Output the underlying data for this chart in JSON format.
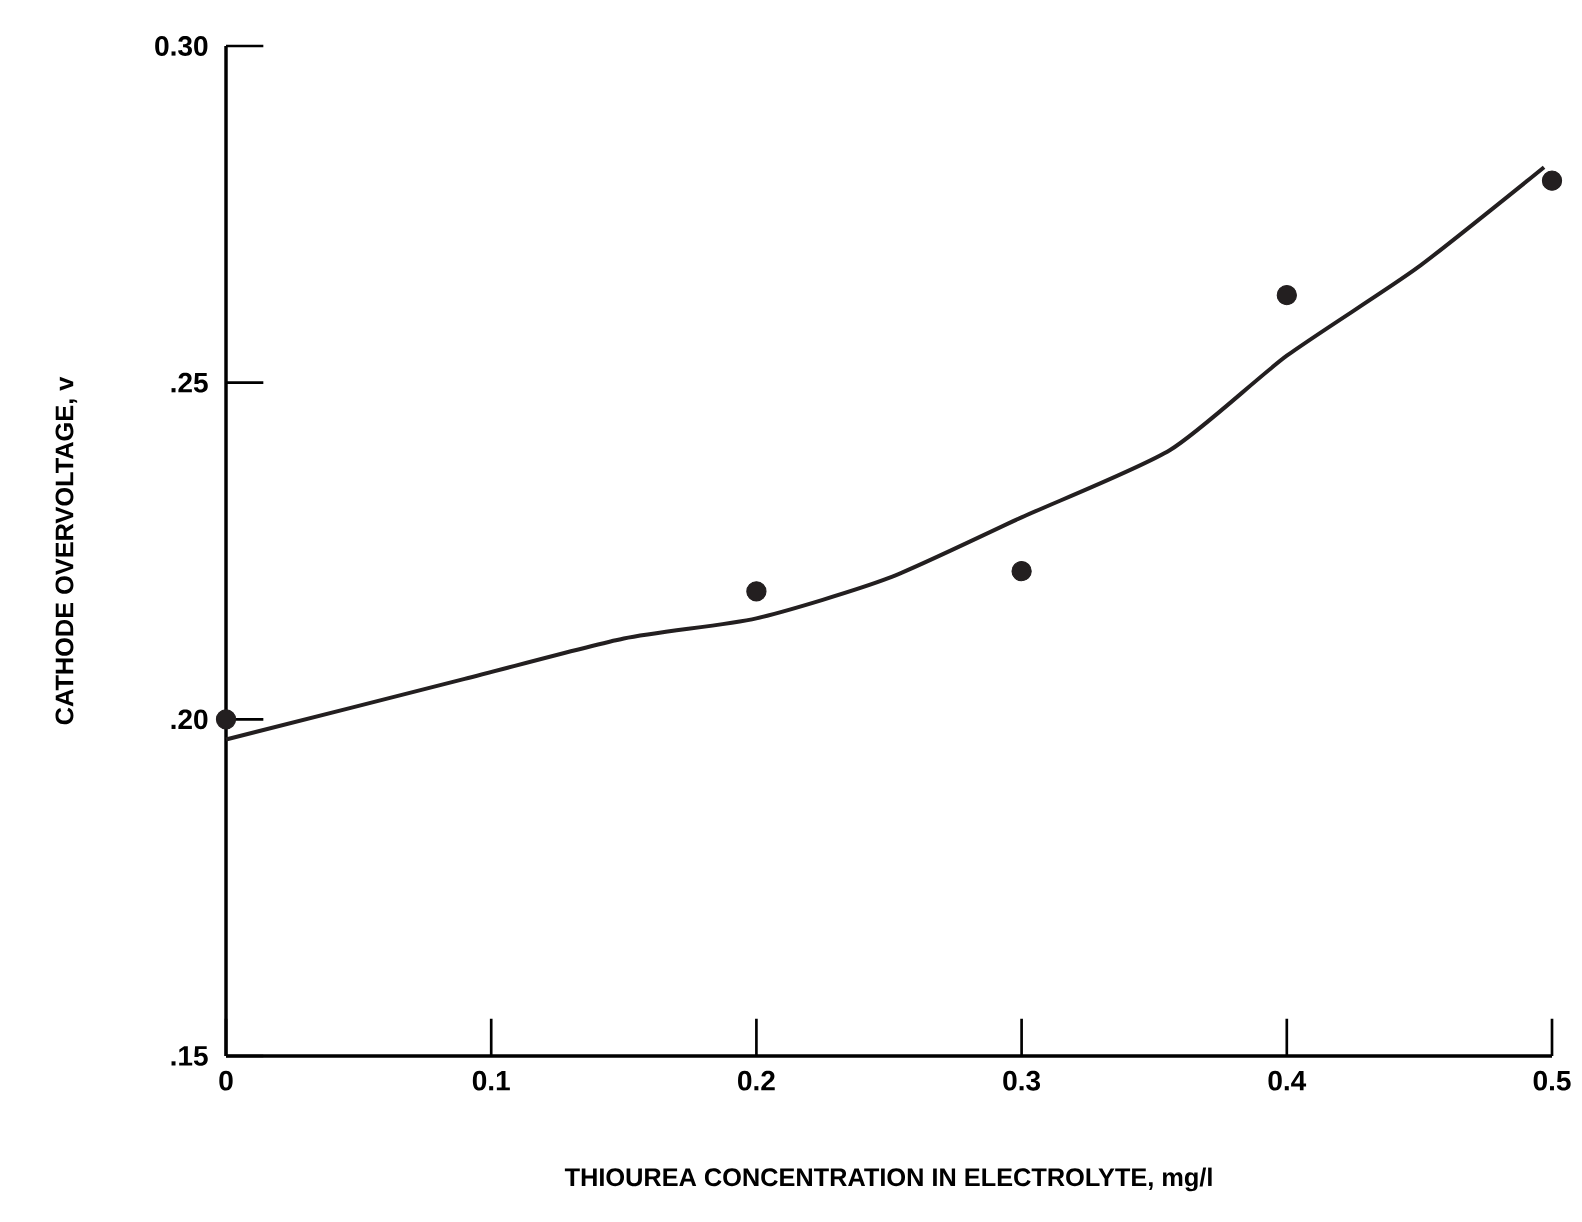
{
  "chart_data": {
    "type": "scatter",
    "xlabel": "THIOUREA CONCENTRATION IN ELECTROLYTE, mg/l",
    "ylabel": "CATHODE OVERVOLTAGE, v",
    "xlim": [
      0,
      0.5
    ],
    "ylim": [
      0.15,
      0.3
    ],
    "xticks": [
      0,
      0.1,
      0.2,
      0.3,
      0.4,
      0.5
    ],
    "yticks": [
      {
        "value": 0.15,
        "label": ".15"
      },
      {
        "value": 0.2,
        "label": ".20"
      },
      {
        "value": 0.25,
        "label": ".25"
      },
      {
        "value": 0.3,
        "label": "0.30"
      }
    ],
    "grid": false,
    "series": [
      {
        "marker": "circle",
        "color": "#231f20",
        "x": [
          0,
          0.2,
          0.3,
          0.4,
          0.5
        ],
        "values": [
          0.2,
          0.219,
          0.222,
          0.263,
          0.28
        ]
      },
      {
        "type": "line",
        "marker": "none",
        "line_style": "solid",
        "color": "#231f20",
        "x": [
          0,
          0.09,
          0.15,
          0.2,
          0.25,
          0.3,
          0.356,
          0.4,
          0.449,
          0.497
        ],
        "values": [
          0.197,
          0.206,
          0.212,
          0.215,
          0.221,
          0.23,
          0.24,
          0.254,
          0.267,
          0.282
        ]
      }
    ]
  }
}
